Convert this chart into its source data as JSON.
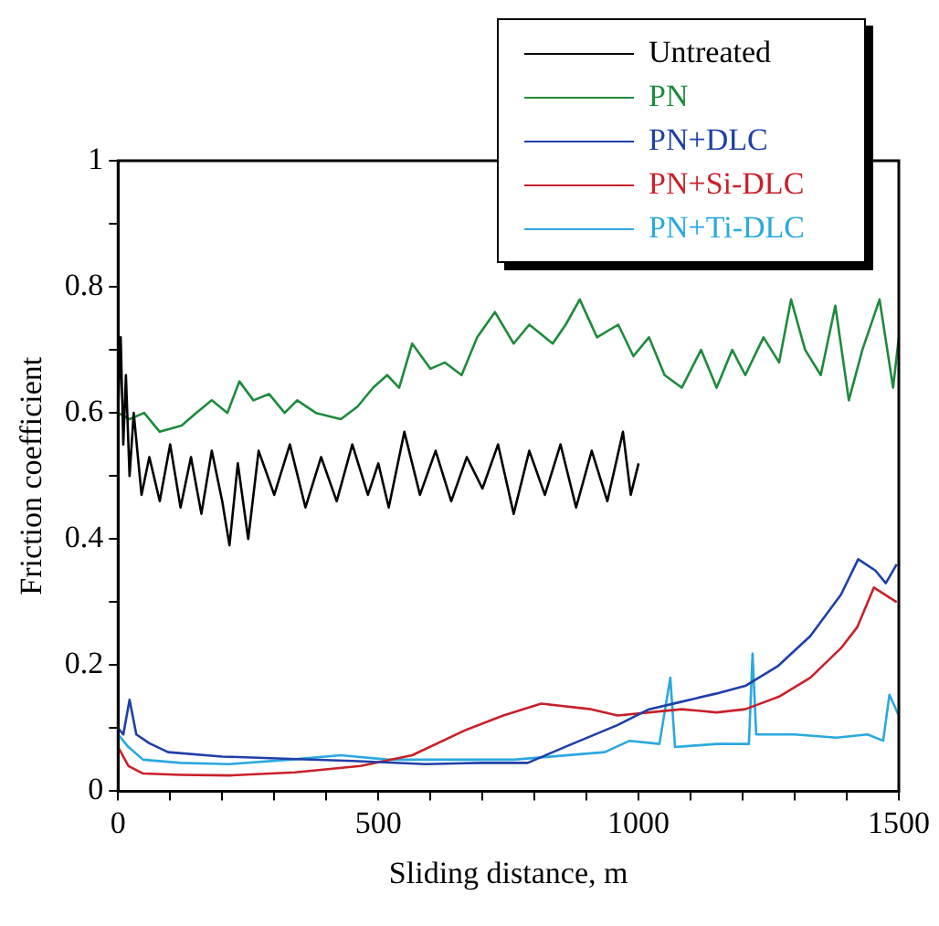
{
  "chart_data": {
    "type": "line",
    "xlabel": "Sliding distance, m",
    "ylabel": "Friction coefficient",
    "xlim": [
      0,
      1500
    ],
    "xticks": [
      0,
      {
        "value": 100,
        "label": null
      },
      {
        "value": 200,
        "label": null
      },
      {
        "value": 300,
        "label": null
      },
      {
        "value": 400,
        "label": null
      },
      500,
      {
        "value": 600,
        "label": null
      },
      {
        "value": 700,
        "label": null
      },
      {
        "value": 800,
        "label": null
      },
      {
        "value": 900,
        "label": null
      },
      1000,
      {
        "value": 1100,
        "label": null
      },
      {
        "value": 1200,
        "label": null
      },
      {
        "value": 1300,
        "label": null
      },
      {
        "value": 1400,
        "label": null
      },
      1500
    ],
    "ylim": [
      0,
      1
    ],
    "yticks": [
      0,
      {
        "value": 0.1,
        "label": null
      },
      0.2,
      {
        "value": 0.3,
        "label": null
      },
      0.4,
      {
        "value": 0.5,
        "label": null
      },
      0.6,
      {
        "value": 0.7,
        "label": null
      },
      0.8,
      {
        "value": 0.9,
        "label": null
      },
      1
    ],
    "grid": false,
    "legend": "top right",
    "marker": "none",
    "line_style": "solid",
    "series": [
      {
        "name": "Untreated",
        "color": "#000000",
        "x": [
          0,
          5,
          10,
          15,
          22,
          30,
          45,
          60,
          80,
          100,
          120,
          140,
          160,
          180,
          200,
          214,
          230,
          250,
          270,
          300,
          330,
          360,
          390,
          420,
          450,
          480,
          500,
          520,
          550,
          580,
          610,
          640,
          670,
          700,
          730,
          760,
          790,
          820,
          850,
          880,
          910,
          940,
          970,
          985,
          1000
        ],
        "values": [
          0.6,
          0.72,
          0.55,
          0.66,
          0.5,
          0.6,
          0.47,
          0.53,
          0.46,
          0.55,
          0.45,
          0.53,
          0.44,
          0.54,
          0.46,
          0.39,
          0.52,
          0.4,
          0.54,
          0.47,
          0.55,
          0.45,
          0.53,
          0.46,
          0.55,
          0.47,
          0.52,
          0.45,
          0.57,
          0.47,
          0.54,
          0.46,
          0.53,
          0.48,
          0.55,
          0.44,
          0.54,
          0.47,
          0.55,
          0.45,
          0.54,
          0.46,
          0.57,
          0.47,
          0.52
        ]
      },
      {
        "name": "PN",
        "color": "#1e8a3c",
        "x": [
          0,
          22,
          50,
          80,
          122,
          150,
          180,
          210,
          233,
          260,
          290,
          320,
          344,
          380,
          428,
          460,
          490,
          517,
          540,
          565,
          600,
          628,
          660,
          690,
          724,
          760,
          790,
          835,
          860,
          887,
          920,
          961,
          990,
          1020,
          1050,
          1083,
          1120,
          1150,
          1180,
          1205,
          1240,
          1270,
          1293,
          1320,
          1350,
          1378,
          1404,
          1430,
          1463,
          1489,
          1500
        ],
        "values": [
          0.6,
          0.59,
          0.6,
          0.57,
          0.58,
          0.6,
          0.62,
          0.6,
          0.65,
          0.62,
          0.63,
          0.6,
          0.62,
          0.6,
          0.59,
          0.61,
          0.64,
          0.66,
          0.64,
          0.71,
          0.67,
          0.68,
          0.66,
          0.72,
          0.76,
          0.71,
          0.74,
          0.71,
          0.74,
          0.78,
          0.72,
          0.74,
          0.69,
          0.72,
          0.66,
          0.64,
          0.7,
          0.64,
          0.7,
          0.66,
          0.72,
          0.68,
          0.78,
          0.7,
          0.66,
          0.77,
          0.62,
          0.7,
          0.78,
          0.64,
          0.72
        ]
      },
      {
        "name": "PN+DLC",
        "color": "#1f3fa8",
        "x": [
          0,
          10,
          22,
          35,
          60,
          96,
          200,
          344,
          450,
          591,
          700,
          787,
          861,
          960,
          1020,
          1083,
          1150,
          1205,
          1267,
          1330,
          1389,
          1422,
          1455,
          1475,
          1496
        ],
        "values": [
          0.1,
          0.09,
          0.145,
          0.09,
          0.076,
          0.062,
          0.055,
          0.051,
          0.048,
          0.043,
          0.045,
          0.045,
          0.071,
          0.105,
          0.13,
          0.142,
          0.155,
          0.167,
          0.198,
          0.246,
          0.312,
          0.368,
          0.35,
          0.33,
          0.36
        ]
      },
      {
        "name": "PN+Si-DLC",
        "color": "#c8202a",
        "x": [
          0,
          20,
          48,
          120,
          214,
          340,
          466,
          565,
          665,
          740,
          813,
          909,
          960,
          1020,
          1083,
          1150,
          1205,
          1270,
          1330,
          1389,
          1420,
          1452,
          1496
        ],
        "values": [
          0.07,
          0.04,
          0.028,
          0.026,
          0.025,
          0.03,
          0.04,
          0.057,
          0.096,
          0.12,
          0.139,
          0.13,
          0.12,
          0.125,
          0.13,
          0.125,
          0.13,
          0.15,
          0.18,
          0.227,
          0.26,
          0.323,
          0.3
        ]
      },
      {
        "name": "PN+Ti-DLC",
        "color": "#2aa8e0",
        "x": [
          0,
          20,
          48,
          120,
          214,
          330,
          428,
          520,
          600,
          760,
          935,
          983,
          1040,
          1061,
          1070,
          1150,
          1212,
          1219,
          1226,
          1300,
          1380,
          1440,
          1470,
          1482,
          1500
        ],
        "values": [
          0.09,
          0.07,
          0.05,
          0.045,
          0.043,
          0.05,
          0.057,
          0.05,
          0.05,
          0.05,
          0.062,
          0.08,
          0.075,
          0.18,
          0.07,
          0.075,
          0.075,
          0.218,
          0.09,
          0.09,
          0.085,
          0.09,
          0.08,
          0.153,
          0.12
        ]
      }
    ]
  }
}
